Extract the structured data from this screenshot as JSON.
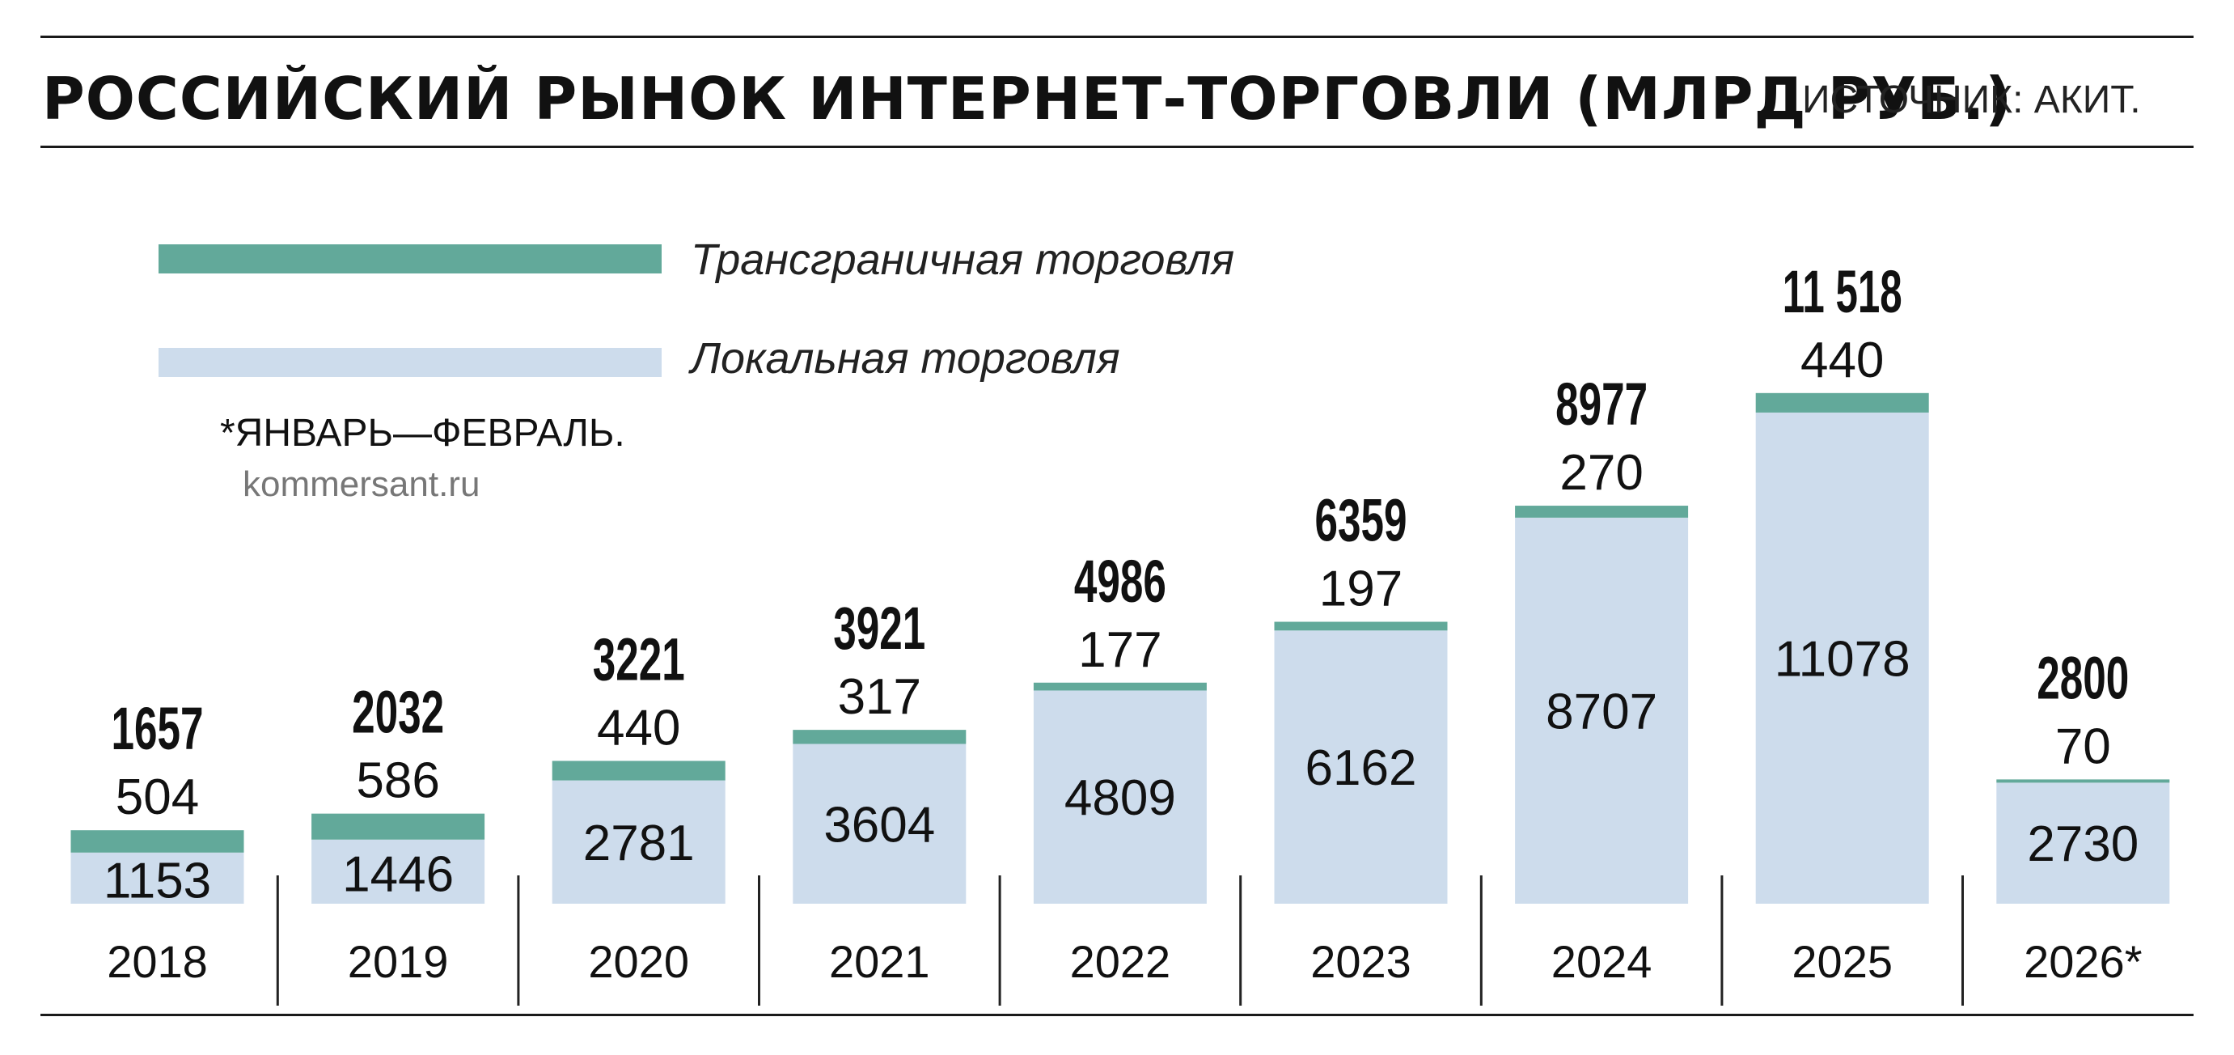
{
  "header": {
    "title": "РОССИЙСКИЙ РЫНОК ИНТЕРНЕТ-ТОРГОВЛИ (МЛРД РУБ.)",
    "source": "ИСТОЧНИК: АКИТ."
  },
  "legend": {
    "cross_border": "Трансграничная торговля",
    "local": "Локальная торговля"
  },
  "footnote": "*ЯНВАРЬ—ФЕВРАЛЬ.",
  "credit": "kommersant.ru",
  "colors": {
    "cross_border": "#62a99a",
    "local": "#cddcec",
    "text": "#111111"
  },
  "chart_data": {
    "type": "bar",
    "stacked": true,
    "categories": [
      "2018",
      "2019",
      "2020",
      "2021",
      "2022",
      "2023",
      "2024",
      "2025",
      "2026*"
    ],
    "series": [
      {
        "name": "Локальная торговля",
        "values": [
          1153,
          1446,
          2781,
          3604,
          4809,
          6162,
          8707,
          11078,
          2730
        ]
      },
      {
        "name": "Трансграничная торговля",
        "values": [
          504,
          586,
          440,
          317,
          177,
          197,
          270,
          440,
          70
        ]
      }
    ],
    "totals": [
      "1657",
      "2032",
      "3221",
      "3921",
      "4986",
      "6359",
      "8977",
      "11 518",
      "2800"
    ],
    "title": "РОССИЙСКИЙ РЫНОК ИНТЕРНЕТ-ТОРГОВЛИ (МЛРД РУБ.)",
    "ylim": [
      0,
      11518
    ],
    "grid": false,
    "legend_position": "top-left"
  }
}
